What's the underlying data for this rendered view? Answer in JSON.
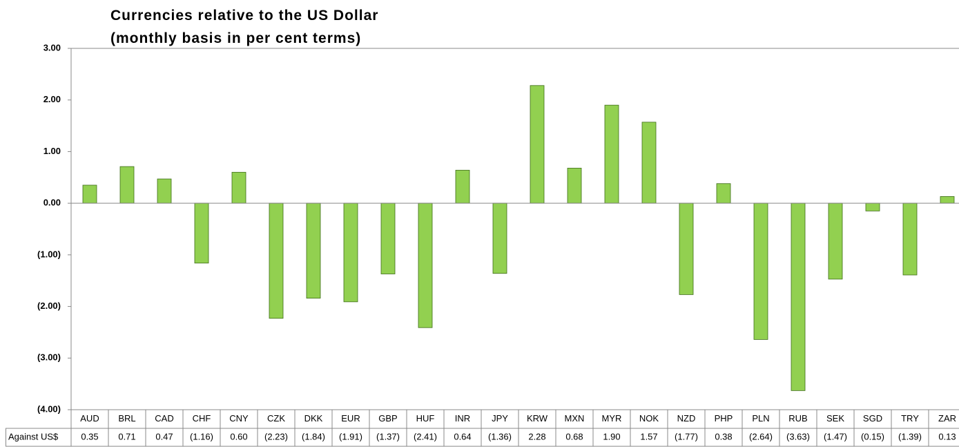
{
  "chart_data": {
    "type": "bar",
    "title": "Currencies relative to the US Dollar",
    "subtitle": "(monthly basis in per cent terms)",
    "categories": [
      "AUD",
      "BRL",
      "CAD",
      "CHF",
      "CNY",
      "CZK",
      "DKK",
      "EUR",
      "GBP",
      "HUF",
      "INR",
      "JPY",
      "KRW",
      "MXN",
      "MYR",
      "NOK",
      "NZD",
      "PHP",
      "PLN",
      "RUB",
      "SEK",
      "SGD",
      "TRY",
      "ZAR"
    ],
    "series": [
      {
        "name": "Against US$",
        "color": "#92d050",
        "values": [
          0.35,
          0.71,
          0.47,
          -1.16,
          0.6,
          -2.23,
          -1.84,
          -1.91,
          -1.37,
          -2.41,
          0.64,
          -1.36,
          2.28,
          0.68,
          1.9,
          1.57,
          -1.77,
          0.38,
          -2.64,
          -3.63,
          -1.47,
          -0.15,
          -1.39,
          0.13
        ],
        "value_labels": [
          "0.35",
          "0.71",
          "0.47",
          "(1.16)",
          "0.60",
          "(2.23)",
          "(1.84)",
          "(1.91)",
          "(1.37)",
          "(2.41)",
          "0.64",
          "(1.36)",
          "2.28",
          "0.68",
          "1.90",
          "1.57",
          "(1.77)",
          "0.38",
          "(2.64)",
          "(3.63)",
          "(1.47)",
          "(0.15)",
          "(1.39)",
          "0.13"
        ]
      }
    ],
    "ylim": [
      -4,
      3
    ],
    "yticks": [
      {
        "value": -4,
        "label": "(4.00)"
      },
      {
        "value": -3,
        "label": "(3.00)"
      },
      {
        "value": -2,
        "label": "(2.00)"
      },
      {
        "value": -1,
        "label": "(1.00)"
      },
      {
        "value": 0,
        "label": "0.00"
      },
      {
        "value": 1,
        "label": "1.00"
      },
      {
        "value": 2,
        "label": "2.00"
      },
      {
        "value": 3,
        "label": "3.00"
      }
    ],
    "grid": false
  }
}
